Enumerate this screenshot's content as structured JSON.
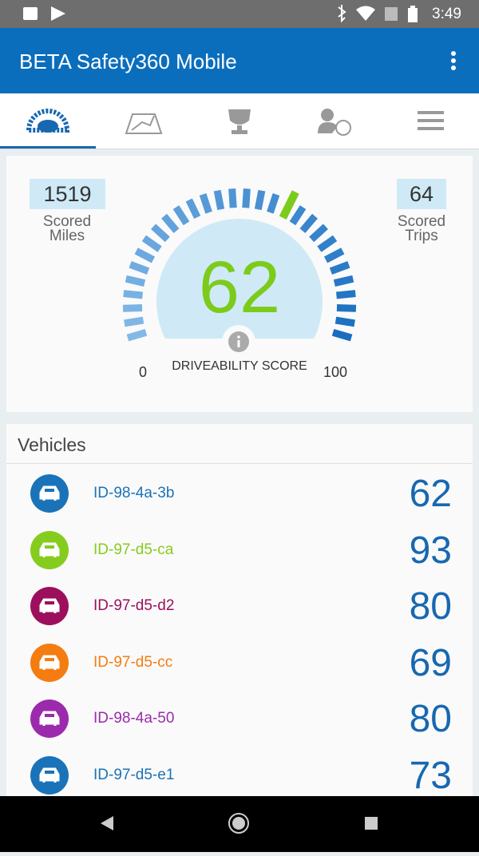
{
  "status_bar": {
    "time": "3:49"
  },
  "app_bar": {
    "title": "BETA Safety360 Mobile"
  },
  "summary": {
    "scored_miles": {
      "value": 1519,
      "label": "Scored Miles"
    },
    "scored_trips": {
      "value": 64,
      "label": "Scored Trips"
    }
  },
  "gauge": {
    "score": 62,
    "min": 0,
    "max": 100,
    "label": "DRIVEABILITY SCORE",
    "score_color": "#7ccb1c"
  },
  "vehicles": {
    "title": "Vehicles",
    "items": [
      {
        "id": "ID-98-4a-3b",
        "color": "#1a73b8",
        "score": 62
      },
      {
        "id": "ID-97-d5-ca",
        "color": "#86cc1e",
        "score": 93
      },
      {
        "id": "ID-97-d5-d2",
        "color": "#9c0f5c",
        "score": 80
      },
      {
        "id": "ID-97-d5-cc",
        "color": "#f57c10",
        "score": 69
      },
      {
        "id": "ID-98-4a-50",
        "color": "#9c2aad",
        "score": 80
      },
      {
        "id": "ID-97-d5-e1",
        "color": "#1a73b8",
        "score": 73
      }
    ]
  }
}
